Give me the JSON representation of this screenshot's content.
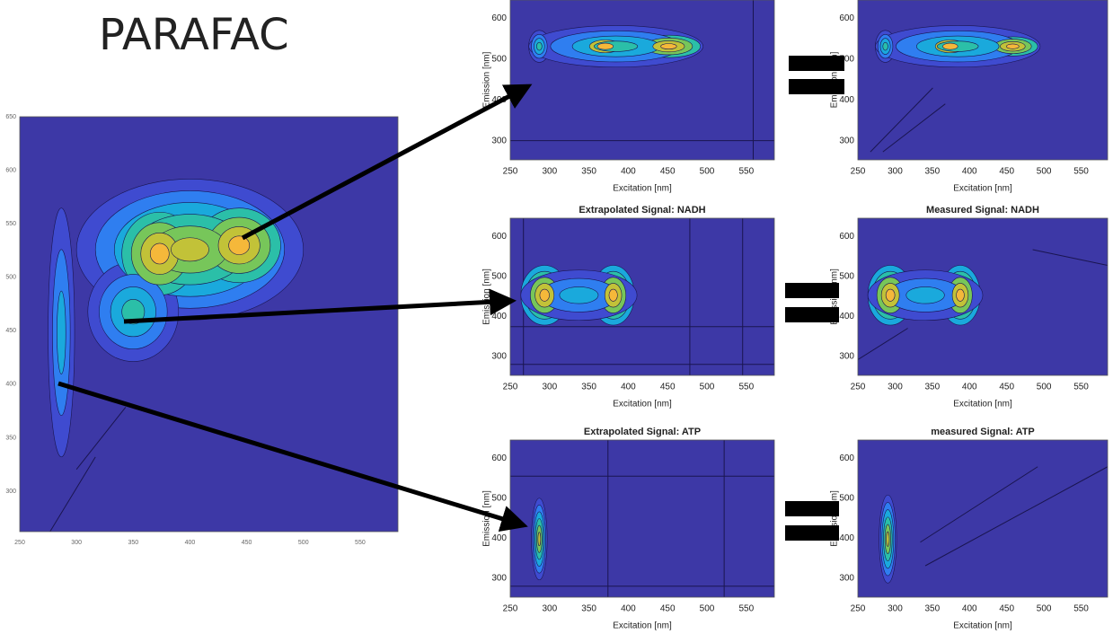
{
  "title": "PARAFAC",
  "source_plot": {
    "x_ticks": [
      "250",
      "300",
      "350",
      "400",
      "450",
      "500",
      "550"
    ],
    "y_ticks": [
      "300",
      "350",
      "400",
      "450",
      "500",
      "550",
      "600",
      "650"
    ]
  },
  "panels": [
    {
      "x_label": "Excitation [nm]",
      "y_label": "Emission [nm]",
      "x_ticks": [
        "250",
        "300",
        "350",
        "400",
        "450",
        "500",
        "550"
      ],
      "y_ticks": [
        "300",
        "400",
        "500",
        "600"
      ]
    },
    {
      "x_label": "Excitation [nm]",
      "y_label": "Emission [nm]",
      "x_ticks": [
        "250",
        "300",
        "350",
        "400",
        "450",
        "500",
        "550"
      ],
      "y_ticks": [
        "300",
        "400",
        "500",
        "600"
      ]
    },
    {
      "title": "Extrapolated Signal: NADH",
      "x_label": "Excitation [nm]",
      "y_label": "Emission [nm]",
      "x_ticks": [
        "250",
        "300",
        "350",
        "400",
        "450",
        "500",
        "550"
      ],
      "y_ticks": [
        "300",
        "400",
        "500",
        "600"
      ]
    },
    {
      "title": "Measured Signal: NADH",
      "x_label": "Excitation [nm]",
      "y_label": "Emission [nm]",
      "x_ticks": [
        "250",
        "300",
        "350",
        "400",
        "450",
        "500",
        "550"
      ],
      "y_ticks": [
        "300",
        "400",
        "500",
        "600"
      ]
    },
    {
      "title": "Extrapolated Signal: ATP",
      "x_label": "Excitation [nm]",
      "y_label": "Emission [nm]",
      "x_ticks": [
        "250",
        "300",
        "350",
        "400",
        "450",
        "500",
        "550"
      ],
      "y_ticks": [
        "300",
        "400",
        "500",
        "600"
      ]
    },
    {
      "title": "measured Signal: ATP",
      "x_label": "Excitation [nm]",
      "y_label": "Emission [nm]",
      "x_ticks": [
        "250",
        "300",
        "350",
        "400",
        "450",
        "500",
        "550"
      ],
      "y_ticks": [
        "300",
        "400",
        "500",
        "600"
      ]
    }
  ]
}
